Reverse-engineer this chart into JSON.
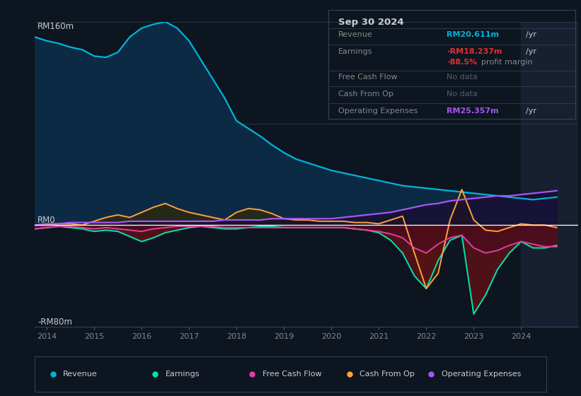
{
  "bg_color": "#0d1520",
  "chart_bg": "#0d1520",
  "grid_color": "#1e2d3d",
  "zero_line_color": "#ffffff",
  "ylim": [
    -80,
    160
  ],
  "years": [
    2013.75,
    2014.0,
    2014.25,
    2014.5,
    2014.75,
    2015.0,
    2015.25,
    2015.5,
    2015.75,
    2016.0,
    2016.25,
    2016.5,
    2016.75,
    2017.0,
    2017.25,
    2017.5,
    2017.75,
    2018.0,
    2018.25,
    2018.5,
    2018.75,
    2019.0,
    2019.25,
    2019.5,
    2019.75,
    2020.0,
    2020.25,
    2020.5,
    2020.75,
    2021.0,
    2021.25,
    2021.5,
    2021.75,
    2022.0,
    2022.25,
    2022.5,
    2022.75,
    2023.0,
    2023.25,
    2023.5,
    2023.75,
    2024.0,
    2024.25,
    2024.5,
    2024.75
  ],
  "revenue": [
    148,
    145,
    143,
    140,
    138,
    133,
    132,
    136,
    148,
    155,
    158,
    160,
    155,
    145,
    130,
    115,
    100,
    82,
    76,
    70,
    63,
    57,
    52,
    49,
    46,
    43,
    41,
    39,
    37,
    35,
    33,
    31,
    30,
    29,
    28,
    27,
    26,
    25,
    24,
    23,
    22,
    21,
    20,
    21,
    22
  ],
  "earnings": [
    -3,
    -2,
    -1,
    -2,
    -3,
    -5,
    -4,
    -5,
    -9,
    -13,
    -10,
    -6,
    -4,
    -2,
    -1,
    -2,
    -3,
    -3,
    -2,
    -1,
    -1,
    -2,
    -2,
    -2,
    -2,
    -2,
    -2,
    -3,
    -4,
    -6,
    -12,
    -22,
    -40,
    -50,
    -28,
    -12,
    -8,
    -70,
    -55,
    -35,
    -22,
    -13,
    -18,
    -18,
    -16
  ],
  "free_cash_flow": [
    -3,
    -2,
    -1,
    -1,
    -2,
    -3,
    -2,
    -3,
    -4,
    -5,
    -3,
    -2,
    -1,
    -1,
    -1,
    -1,
    -2,
    -2,
    -2,
    -2,
    -2,
    -2,
    -2,
    -2,
    -2,
    -2,
    -2,
    -3,
    -4,
    -5,
    -7,
    -10,
    -18,
    -22,
    -15,
    -10,
    -8,
    -18,
    -22,
    -20,
    -16,
    -13,
    -15,
    -17,
    -17
  ],
  "cash_from_op": [
    0,
    0,
    1,
    1,
    0,
    3,
    6,
    8,
    6,
    10,
    14,
    17,
    13,
    10,
    8,
    6,
    4,
    10,
    13,
    12,
    9,
    5,
    4,
    4,
    3,
    3,
    3,
    2,
    2,
    1,
    4,
    7,
    -22,
    -50,
    -38,
    4,
    28,
    4,
    -4,
    -5,
    -2,
    1,
    0,
    0,
    -2
  ],
  "operating_expenses": [
    0,
    1,
    1,
    2,
    2,
    2,
    2,
    2,
    3,
    3,
    3,
    3,
    3,
    3,
    3,
    3,
    4,
    4,
    4,
    4,
    5,
    5,
    5,
    5,
    5,
    5,
    6,
    7,
    8,
    9,
    10,
    12,
    14,
    16,
    17,
    19,
    20,
    21,
    22,
    23,
    23,
    24,
    25,
    26,
    27
  ],
  "revenue_color": "#00b4d8",
  "revenue_fill": "#0d2a45",
  "earnings_color": "#00e5b0",
  "earnings_fill_neg": "#5a1a1a",
  "free_cash_flow_color": "#e040a0",
  "cash_from_op_color": "#ffa040",
  "cash_from_op_fill_pos": "#3a3320",
  "operating_expenses_color": "#a855f7",
  "shaded_right_color": "#162030",
  "x_ticks": [
    2014,
    2015,
    2016,
    2017,
    2018,
    2019,
    2020,
    2021,
    2022,
    2023,
    2024
  ],
  "xlim": [
    2013.75,
    2025.2
  ],
  "shade_start": 2024.0,
  "info_date": "Sep 30 2024",
  "info_revenue_label": "Revenue",
  "info_revenue_value": "RM20.611m",
  "info_earnings_label": "Earnings",
  "info_earnings_value": "-RM18.237m",
  "info_margin_value": "-88.5%",
  "info_fcf_label": "Free Cash Flow",
  "info_cfop_label": "Cash From Op",
  "info_opex_label": "Operating Expenses",
  "info_opex_value": "RM25.357m",
  "legend_entries": [
    "Revenue",
    "Earnings",
    "Free Cash Flow",
    "Cash From Op",
    "Operating Expenses"
  ],
  "legend_colors": [
    "#00b4d8",
    "#00e5b0",
    "#e040a0",
    "#ffa040",
    "#a855f7"
  ]
}
